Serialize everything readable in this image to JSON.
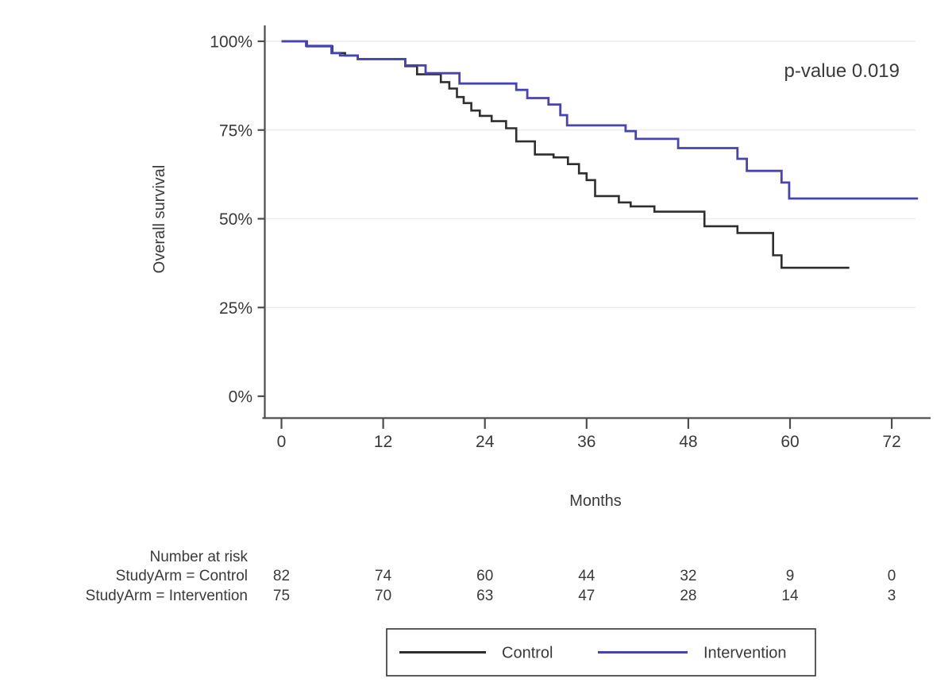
{
  "figure": {
    "p_value_label": "p-value 0.019",
    "x_axis_label": "Months",
    "y_axis_label": "Overall survival"
  },
  "risk_table": {
    "header": "Number at risk",
    "columns_months": [
      0,
      12,
      24,
      36,
      48,
      60,
      72
    ],
    "rows": [
      {
        "label": "StudyArm = Control",
        "counts": [
          82,
          74,
          60,
          44,
          32,
          9,
          0
        ]
      },
      {
        "label": "StudyArm = Intervention",
        "counts": [
          75,
          70,
          63,
          47,
          28,
          14,
          3
        ]
      }
    ]
  },
  "legend": {
    "items": [
      {
        "label": "Control",
        "color": "#2e2e2e"
      },
      {
        "label": "Intervention",
        "color": "#4743b3"
      }
    ]
  },
  "colors": {
    "background": "#ffffff",
    "axis": "#4d4d4d",
    "grid": "#ececec",
    "text": "#3a3a3a",
    "control_line": "#2e2e2e",
    "intervention_line": "#4743b3"
  },
  "chart_data": {
    "type": "line",
    "subtype": "kaplan-meier-step",
    "title": "",
    "xlabel": "Months",
    "ylabel": "Overall survival",
    "annotation": "p-value 0.019",
    "xlim": [
      0,
      76
    ],
    "ylim": [
      0,
      100
    ],
    "x_ticks": [
      0,
      12,
      24,
      36,
      48,
      60,
      72
    ],
    "y_ticks_percent": [
      0,
      25,
      50,
      75,
      100
    ],
    "grid": "horizontal",
    "legend_position": "bottom",
    "series": [
      {
        "name": "Control",
        "color": "#2e2e2e",
        "points_month_percent": [
          [
            0,
            100
          ],
          [
            3,
            98.6
          ],
          [
            6,
            96.7
          ],
          [
            7.5,
            96
          ],
          [
            9,
            95
          ],
          [
            14.6,
            93
          ],
          [
            16,
            90.7
          ],
          [
            18.8,
            88.5
          ],
          [
            19.8,
            86.7
          ],
          [
            20.7,
            84.3
          ],
          [
            21.5,
            82.6
          ],
          [
            22.4,
            80.5
          ],
          [
            23.4,
            79
          ],
          [
            24.8,
            77.5
          ],
          [
            26.5,
            75.5
          ],
          [
            27.7,
            71.8
          ],
          [
            29.9,
            68.1
          ],
          [
            32.1,
            67.3
          ],
          [
            33.8,
            65.4
          ],
          [
            35.1,
            62.8
          ],
          [
            36,
            60.9
          ],
          [
            37,
            56.4
          ],
          [
            39.8,
            54.6
          ],
          [
            41.2,
            53.5
          ],
          [
            44,
            52
          ],
          [
            49.9,
            47.9
          ],
          [
            53.8,
            46
          ],
          [
            58,
            39.7
          ],
          [
            59,
            36.2
          ],
          [
            67,
            36.2
          ]
        ]
      },
      {
        "name": "Intervention",
        "color": "#4743b3",
        "points_month_percent": [
          [
            0,
            100
          ],
          [
            2.9,
            98.7
          ],
          [
            5.9,
            96.7
          ],
          [
            6.9,
            96
          ],
          [
            9,
            95
          ],
          [
            14.6,
            93.2
          ],
          [
            17,
            91
          ],
          [
            21,
            88.1
          ],
          [
            27.7,
            86.3
          ],
          [
            29,
            84
          ],
          [
            31.5,
            82.2
          ],
          [
            32.9,
            79.2
          ],
          [
            33.7,
            76.3
          ],
          [
            40.6,
            74.7
          ],
          [
            41.8,
            72.5
          ],
          [
            46.8,
            69.9
          ],
          [
            53.8,
            66.9
          ],
          [
            54.9,
            63.5
          ],
          [
            59,
            60.2
          ],
          [
            59.9,
            55.7
          ],
          [
            75.1,
            55.7
          ]
        ]
      }
    ]
  }
}
